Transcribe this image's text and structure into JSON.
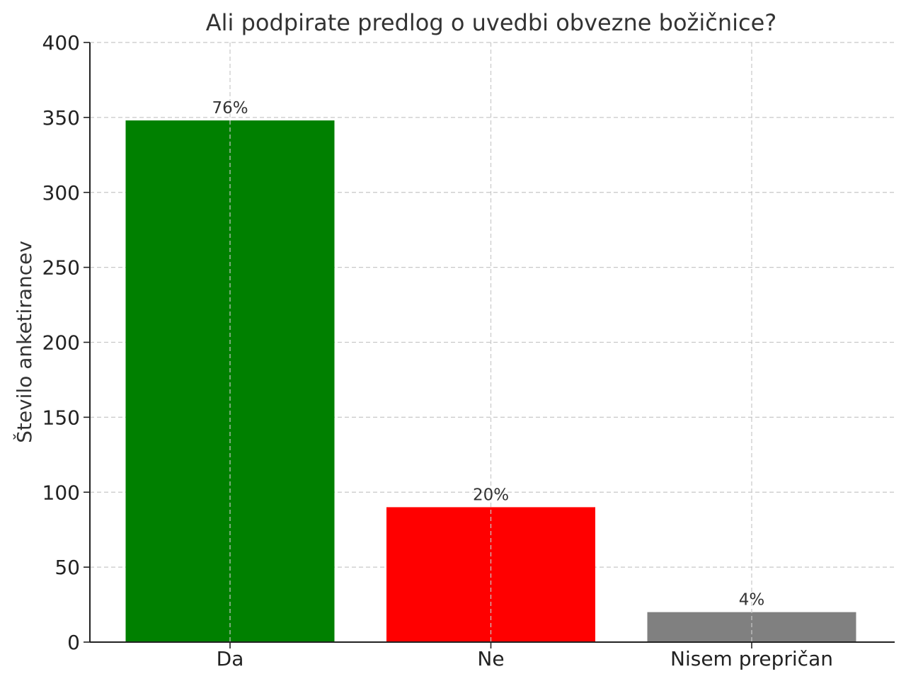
{
  "chart_data": {
    "type": "bar",
    "title": "Ali podpirate predlog o uvedbi obvezne božičnice?",
    "xlabel": "",
    "ylabel": "Število anketirancev",
    "categories": [
      "Da",
      "Ne",
      "Nisem prepričan"
    ],
    "values": [
      348,
      90,
      20
    ],
    "data_labels": [
      "76%",
      "20%",
      "4%"
    ],
    "colors": [
      "#008000",
      "#ff0000",
      "#808080"
    ],
    "ylim": [
      0,
      400
    ],
    "yticks": [
      "0",
      "50",
      "100",
      "150",
      "200",
      "250",
      "300",
      "350",
      "400"
    ],
    "grid": true,
    "grid_style": "dashed"
  }
}
